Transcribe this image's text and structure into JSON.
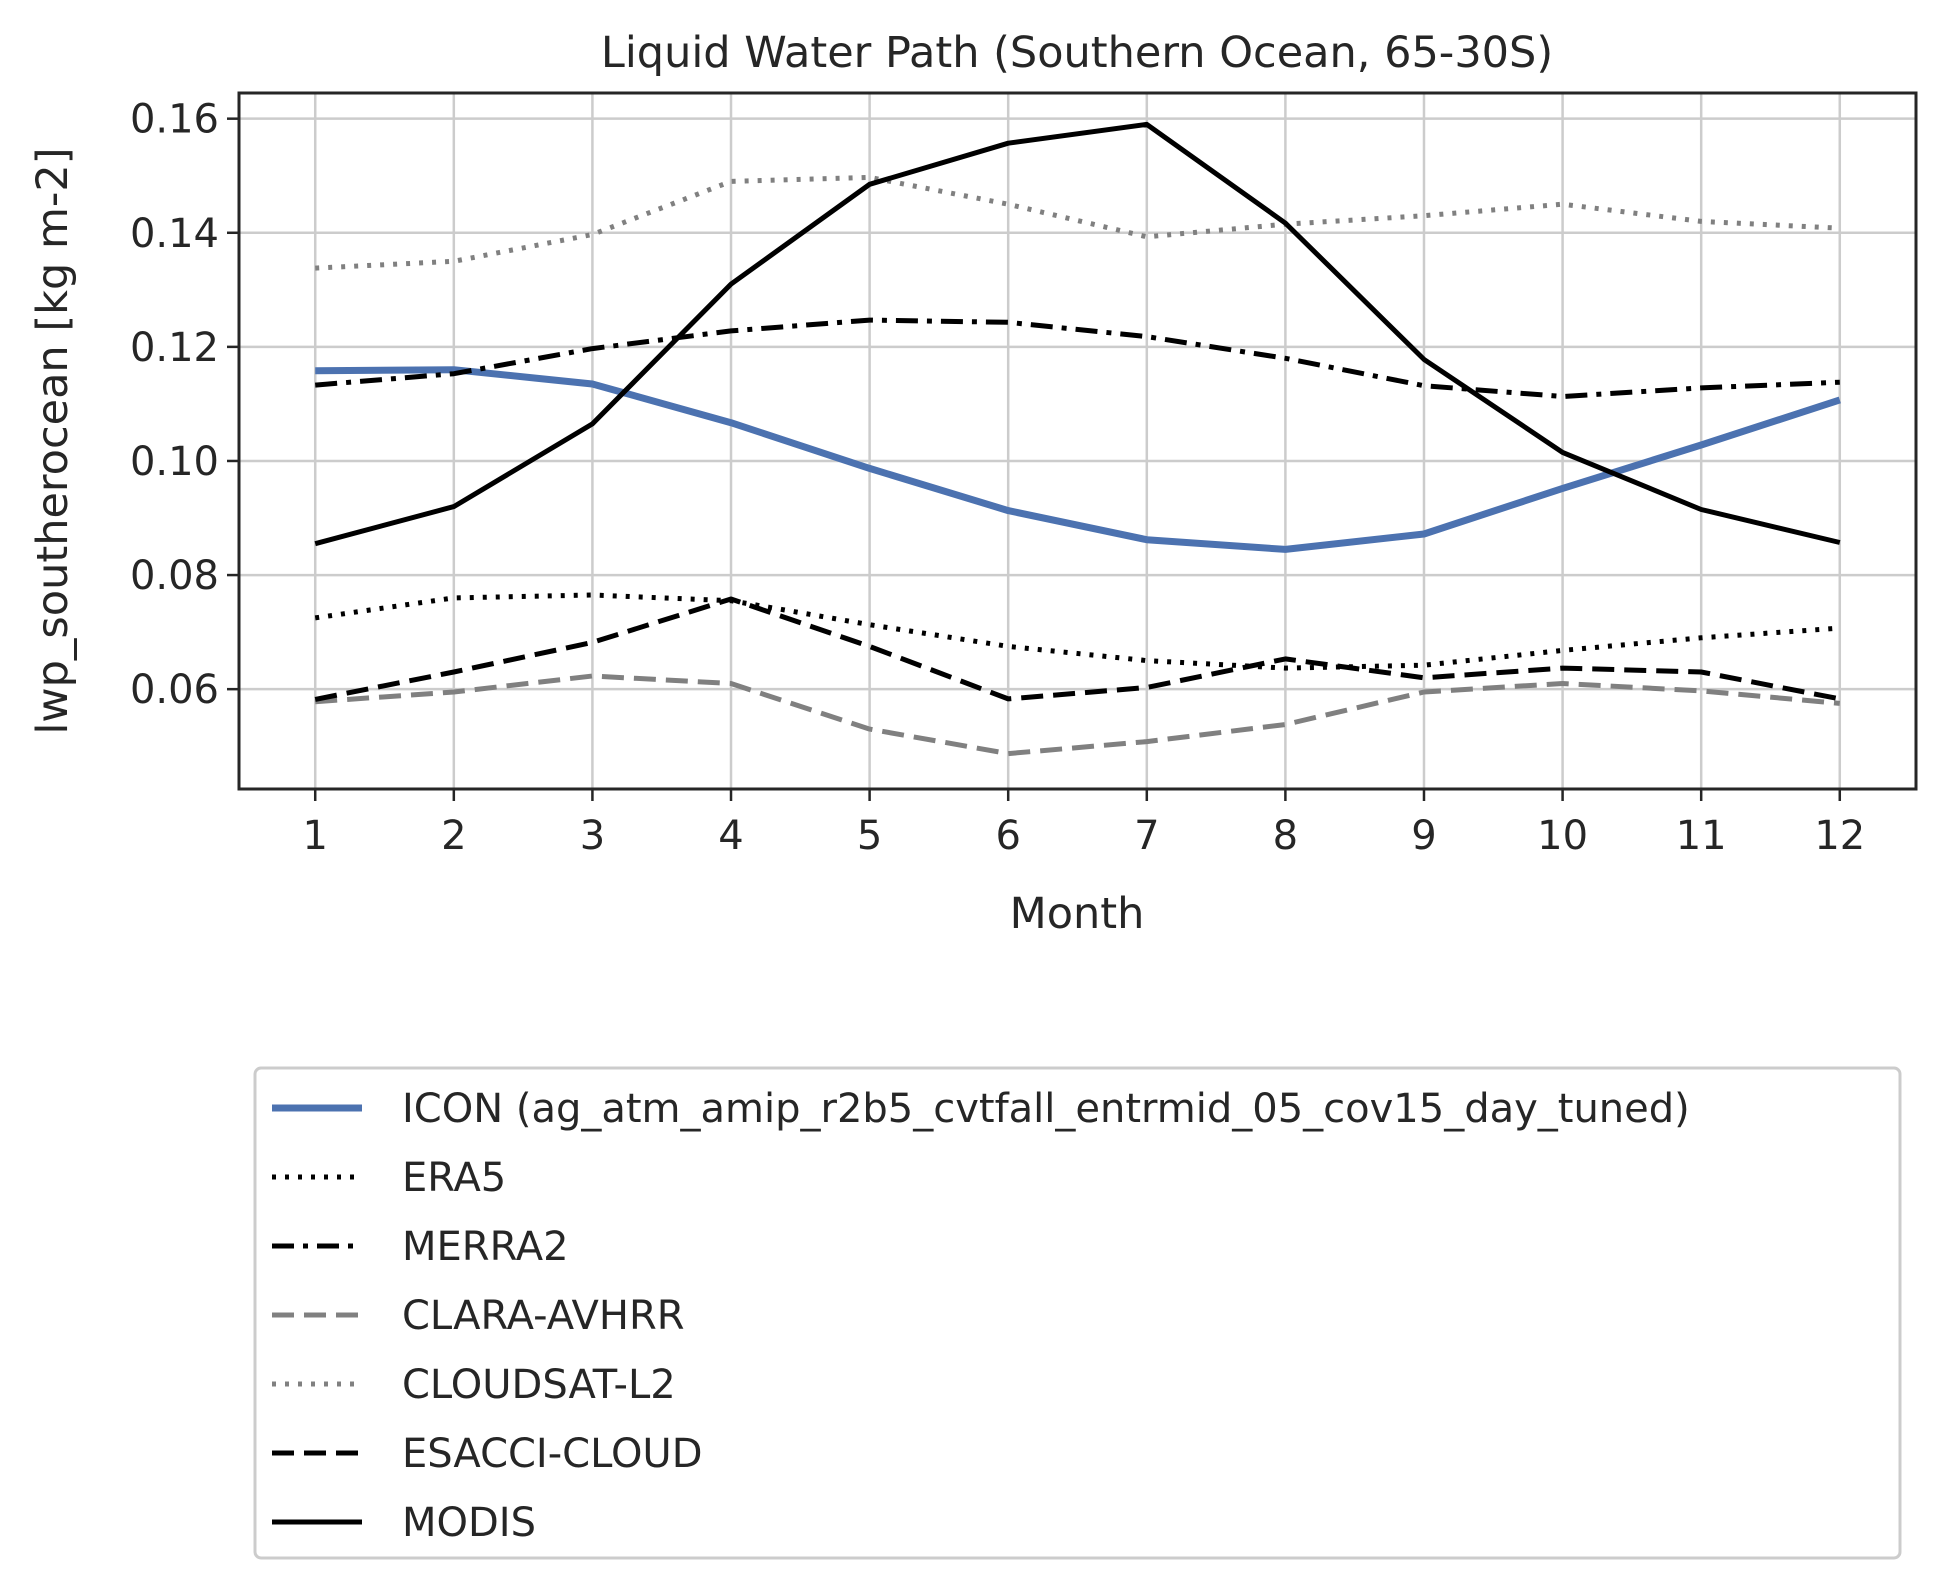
{
  "chart_data": {
    "type": "line",
    "title": "Liquid Water Path (Southern Ocean, 65-30S)",
    "xlabel": "Month",
    "ylabel": "lwp_southerocean [kg m-2]",
    "x": [
      1,
      2,
      3,
      4,
      5,
      6,
      7,
      8,
      9,
      10,
      11,
      12
    ],
    "xticks": [
      "1",
      "2",
      "3",
      "4",
      "5",
      "6",
      "7",
      "8",
      "9",
      "10",
      "11",
      "12"
    ],
    "xlim": [
      0.45,
      12.55
    ],
    "ylim": [
      0.0425,
      0.1645
    ],
    "yticks": [
      "0.06",
      "0.08",
      "0.10",
      "0.12",
      "0.14",
      "0.16"
    ],
    "grid": true,
    "legend_position": "below plot",
    "series": [
      {
        "name": "ICON (ag_atm_amip_r2b5_cvtfall_entrmid_05_cov15_day_tuned)",
        "color": "#4c72b0",
        "style": "solid",
        "width": "thick",
        "values": [
          0.1158,
          0.116,
          0.1135,
          0.1067,
          0.0987,
          0.0913,
          0.0862,
          0.0845,
          0.0872,
          0.0952,
          0.1028,
          0.1107
        ]
      },
      {
        "name": "ERA5",
        "color": "#000000",
        "style": "dotted",
        "values": [
          0.0725,
          0.076,
          0.0765,
          0.0755,
          0.0713,
          0.0675,
          0.065,
          0.0637,
          0.0642,
          0.0668,
          0.069,
          0.0707
        ]
      },
      {
        "name": "MERRA2",
        "color": "#000000",
        "style": "dashdot",
        "values": [
          0.1133,
          0.1153,
          0.1197,
          0.1228,
          0.1247,
          0.1243,
          0.1218,
          0.118,
          0.1132,
          0.1113,
          0.1128,
          0.1138
        ]
      },
      {
        "name": "CLARA-AVHRR",
        "color": "#808080",
        "style": "dashed",
        "values": [
          0.0578,
          0.0595,
          0.0623,
          0.061,
          0.053,
          0.0487,
          0.0508,
          0.0538,
          0.0595,
          0.061,
          0.0597,
          0.0575
        ]
      },
      {
        "name": "CLOUDSAT-L2",
        "color": "#808080",
        "style": "dotted",
        "values": [
          0.1338,
          0.135,
          0.1397,
          0.149,
          0.1497,
          0.145,
          0.1393,
          0.1415,
          0.143,
          0.145,
          0.142,
          0.1408
        ]
      },
      {
        "name": "ESACCI-CLOUD",
        "color": "#000000",
        "style": "dashed",
        "values": [
          0.0582,
          0.063,
          0.0682,
          0.0758,
          0.0675,
          0.0583,
          0.0603,
          0.0653,
          0.062,
          0.0637,
          0.063,
          0.0583
        ]
      },
      {
        "name": "MODIS",
        "color": "#000000",
        "style": "solid",
        "values": [
          0.0855,
          0.092,
          0.1065,
          0.131,
          0.1485,
          0.1557,
          0.159,
          0.1417,
          0.1178,
          0.1015,
          0.0915,
          0.0857
        ]
      }
    ]
  }
}
